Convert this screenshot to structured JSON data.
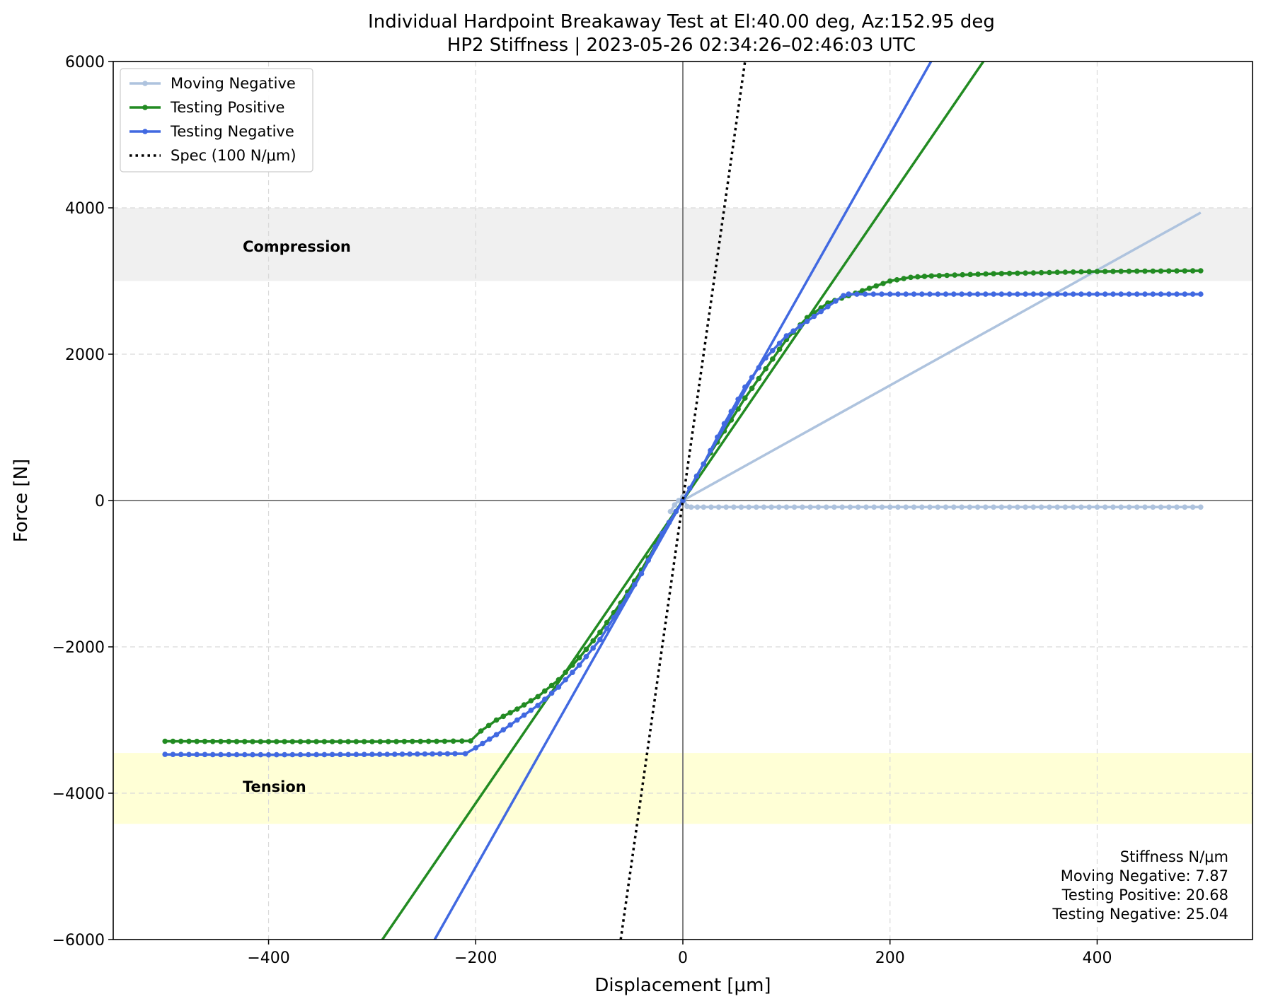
{
  "chart_data": {
    "type": "line",
    "title": "Individual Hardpoint Breakaway Test at El:40.00 deg, Az:152.95 deg",
    "subtitle": "HP2 Stiffness | 2023-05-26 02:34:26–02:46:03 UTC",
    "xlabel": "Displacement [μm]",
    "ylabel": "Force [N]",
    "xlim": [
      -550,
      550
    ],
    "ylim": [
      -6000,
      6000
    ],
    "xticks": [
      -400,
      -200,
      0,
      200,
      400
    ],
    "yticks": [
      -6000,
      -4000,
      -2000,
      0,
      2000,
      4000,
      6000
    ],
    "xtick_labels": [
      "−400",
      "−200",
      "0",
      "200",
      "400"
    ],
    "ytick_labels": [
      "−6000",
      "−4000",
      "−2000",
      "0",
      "2000",
      "4000",
      "6000"
    ],
    "grid": true,
    "legend_position": "upper-left",
    "bands": [
      {
        "label": "Compression",
        "y_range": [
          3000,
          4000
        ],
        "color": "#f0f0f0",
        "label_at": [
          -425,
          3400
        ]
      },
      {
        "label": "Tension",
        "y_range": [
          -4420,
          -3450
        ],
        "color": "#ffffd6",
        "label_at": [
          -425,
          -3980
        ]
      }
    ],
    "series": [
      {
        "name": "Moving Negative",
        "color": "#aec3de",
        "markers": true,
        "points": [
          [
            -12,
            -150
          ],
          [
            -8,
            -60
          ],
          [
            -4,
            0
          ],
          [
            0,
            50
          ],
          [
            4,
            -80
          ],
          [
            8,
            -90
          ],
          [
            20,
            -90
          ],
          [
            100,
            -90
          ],
          [
            200,
            -90
          ],
          [
            300,
            -90
          ],
          [
            400,
            -90
          ],
          [
            500,
            -90
          ]
        ],
        "fit": {
          "slope": 7.87,
          "intercept": 0,
          "x_range": [
            0,
            500
          ]
        }
      },
      {
        "name": "Testing Positive",
        "color": "#228b22",
        "markers": true,
        "points": [
          [
            -500,
            -3290
          ],
          [
            -400,
            -3295
          ],
          [
            -300,
            -3295
          ],
          [
            -230,
            -3290
          ],
          [
            -205,
            -3285
          ],
          [
            -195,
            -3150
          ],
          [
            -180,
            -3000
          ],
          [
            -160,
            -2850
          ],
          [
            -140,
            -2680
          ],
          [
            -120,
            -2450
          ],
          [
            -100,
            -2150
          ],
          [
            -80,
            -1800
          ],
          [
            -60,
            -1400
          ],
          [
            -40,
            -950
          ],
          [
            -20,
            -450
          ],
          [
            0,
            0
          ],
          [
            20,
            500
          ],
          [
            40,
            950
          ],
          [
            60,
            1400
          ],
          [
            80,
            1800
          ],
          [
            100,
            2200
          ],
          [
            120,
            2500
          ],
          [
            140,
            2700
          ],
          [
            160,
            2800
          ],
          [
            180,
            2900
          ],
          [
            200,
            3000
          ],
          [
            220,
            3050
          ],
          [
            240,
            3070
          ],
          [
            300,
            3100
          ],
          [
            400,
            3130
          ],
          [
            500,
            3140
          ]
        ],
        "fit": {
          "slope": 20.68,
          "intercept": 0,
          "x_range": [
            -300,
            300
          ]
        }
      },
      {
        "name": "Testing Negative",
        "color": "#4169e1",
        "markers": true,
        "points": [
          [
            -500,
            -3470
          ],
          [
            -400,
            -3475
          ],
          [
            -300,
            -3470
          ],
          [
            -220,
            -3460
          ],
          [
            -210,
            -3460
          ],
          [
            -200,
            -3380
          ],
          [
            -180,
            -3200
          ],
          [
            -160,
            -3000
          ],
          [
            -140,
            -2800
          ],
          [
            -120,
            -2550
          ],
          [
            -100,
            -2250
          ],
          [
            -80,
            -1900
          ],
          [
            -60,
            -1450
          ],
          [
            -40,
            -1000
          ],
          [
            -20,
            -450
          ],
          [
            0,
            0
          ],
          [
            20,
            500
          ],
          [
            40,
            1050
          ],
          [
            60,
            1550
          ],
          [
            80,
            1950
          ],
          [
            100,
            2250
          ],
          [
            120,
            2450
          ],
          [
            140,
            2650
          ],
          [
            155,
            2800
          ],
          [
            160,
            2820
          ],
          [
            200,
            2820
          ],
          [
            300,
            2820
          ],
          [
            400,
            2820
          ],
          [
            500,
            2820
          ]
        ],
        "fit": {
          "slope": 25.04,
          "intercept": 0,
          "x_range": [
            -300,
            300
          ]
        }
      },
      {
        "name": "Spec (100 N/μm)",
        "color": "#000000",
        "dotted": true,
        "points": [
          [
            -60,
            -6000
          ],
          [
            60,
            6000
          ]
        ]
      }
    ],
    "annotation": {
      "title": "Stiffness N/μm",
      "lines": [
        "Moving Negative:  7.87",
        "Testing Positive: 20.68",
        "Testing Negative: 25.04"
      ]
    }
  }
}
